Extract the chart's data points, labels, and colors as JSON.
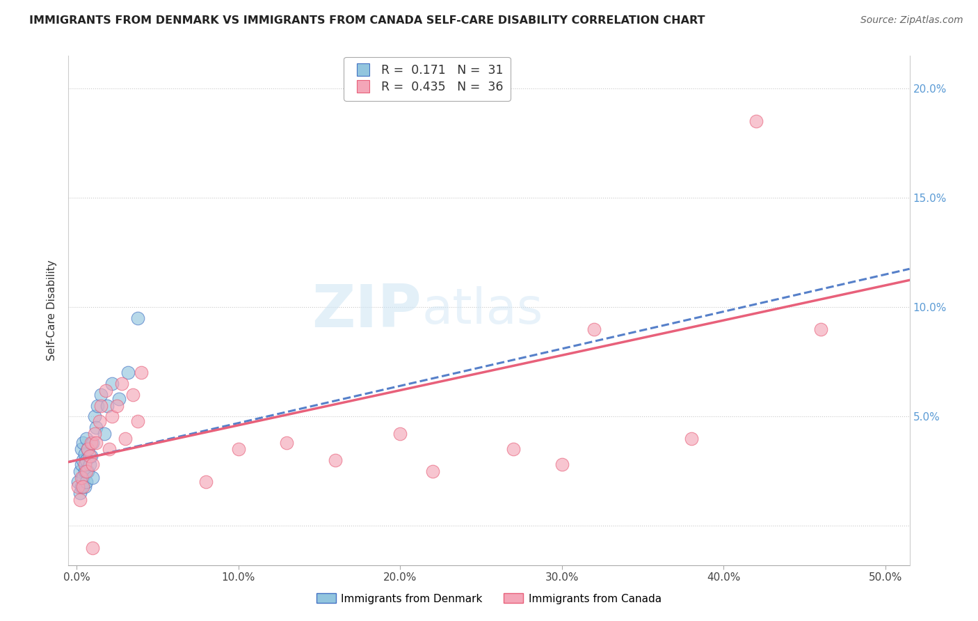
{
  "title": "IMMIGRANTS FROM DENMARK VS IMMIGRANTS FROM CANADA SELF-CARE DISABILITY CORRELATION CHART",
  "source": "Source: ZipAtlas.com",
  "ylabel": "Self-Care Disability",
  "ytick_values": [
    0.0,
    0.05,
    0.1,
    0.15,
    0.2
  ],
  "xtick_values": [
    0.0,
    0.1,
    0.2,
    0.3,
    0.4,
    0.5
  ],
  "xlim": [
    -0.005,
    0.515
  ],
  "ylim": [
    -0.018,
    0.215
  ],
  "legend_label1": "Immigrants from Denmark",
  "legend_label2": "Immigrants from Canada",
  "r1": "0.171",
  "n1": "31",
  "r2": "0.435",
  "n2": "36",
  "color_blue": "#92c5de",
  "color_pink": "#f4a6b8",
  "color_line_blue": "#4472c4",
  "color_line_pink": "#e8607a",
  "watermark_zip": "ZIP",
  "watermark_atlas": "atlas",
  "blue_points_x": [
    0.001,
    0.002,
    0.002,
    0.003,
    0.003,
    0.003,
    0.004,
    0.004,
    0.004,
    0.005,
    0.005,
    0.005,
    0.006,
    0.006,
    0.006,
    0.007,
    0.007,
    0.008,
    0.009,
    0.01,
    0.01,
    0.011,
    0.012,
    0.013,
    0.015,
    0.017,
    0.019,
    0.022,
    0.026,
    0.032,
    0.038
  ],
  "blue_points_y": [
    0.02,
    0.015,
    0.025,
    0.018,
    0.028,
    0.035,
    0.022,
    0.03,
    0.038,
    0.018,
    0.025,
    0.033,
    0.02,
    0.03,
    0.04,
    0.025,
    0.035,
    0.028,
    0.032,
    0.022,
    0.038,
    0.05,
    0.045,
    0.055,
    0.06,
    0.042,
    0.055,
    0.065,
    0.058,
    0.07,
    0.095
  ],
  "pink_points_x": [
    0.001,
    0.002,
    0.003,
    0.004,
    0.005,
    0.006,
    0.007,
    0.008,
    0.009,
    0.01,
    0.011,
    0.012,
    0.014,
    0.015,
    0.018,
    0.02,
    0.022,
    0.025,
    0.028,
    0.03,
    0.035,
    0.038,
    0.04,
    0.08,
    0.1,
    0.13,
    0.16,
    0.2,
    0.22,
    0.27,
    0.3,
    0.32,
    0.38,
    0.42,
    0.46,
    0.01
  ],
  "pink_points_y": [
    0.018,
    0.012,
    0.022,
    0.018,
    0.028,
    0.025,
    0.035,
    0.032,
    0.038,
    0.028,
    0.042,
    0.038,
    0.048,
    0.055,
    0.062,
    0.035,
    0.05,
    0.055,
    0.065,
    0.04,
    0.06,
    0.048,
    0.07,
    0.02,
    0.035,
    0.038,
    0.03,
    0.042,
    0.025,
    0.035,
    0.028,
    0.09,
    0.04,
    0.185,
    0.09,
    -0.01
  ],
  "blue_line_x0": 0.0,
  "blue_line_y0": 0.03,
  "blue_line_x1": 0.5,
  "blue_line_y1": 0.115,
  "pink_line_x0": 0.0,
  "pink_line_y0": 0.03,
  "pink_line_x1": 0.5,
  "pink_line_y1": 0.11
}
